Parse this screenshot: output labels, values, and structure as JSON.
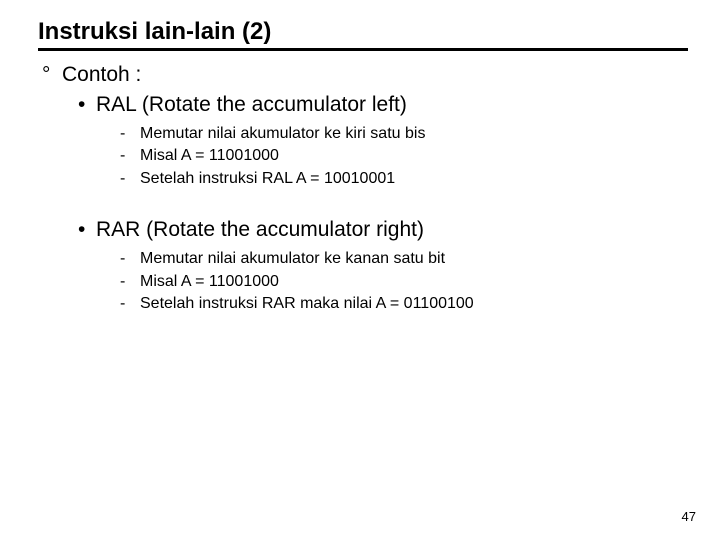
{
  "title": "Instruksi lain-lain (2)",
  "contoh_label": "Contoh :",
  "ral": {
    "heading": "RAL (Rotate the accumulator left)",
    "items": [
      "Memutar nilai akumulator ke kiri satu bis",
      "Misal A = 11001000",
      "Setelah instruksi RAL A = 10010001"
    ]
  },
  "rar": {
    "heading": "RAR (Rotate the accumulator right)",
    "items": [
      "Memutar nilai akumulator ke kanan satu bit",
      "Misal A = 11001000",
      "Setelah instruksi RAR maka nilai A = 01100100"
    ]
  },
  "page_number": "47",
  "bullets": {
    "deg": "°",
    "dot": "•",
    "dash": "-"
  }
}
